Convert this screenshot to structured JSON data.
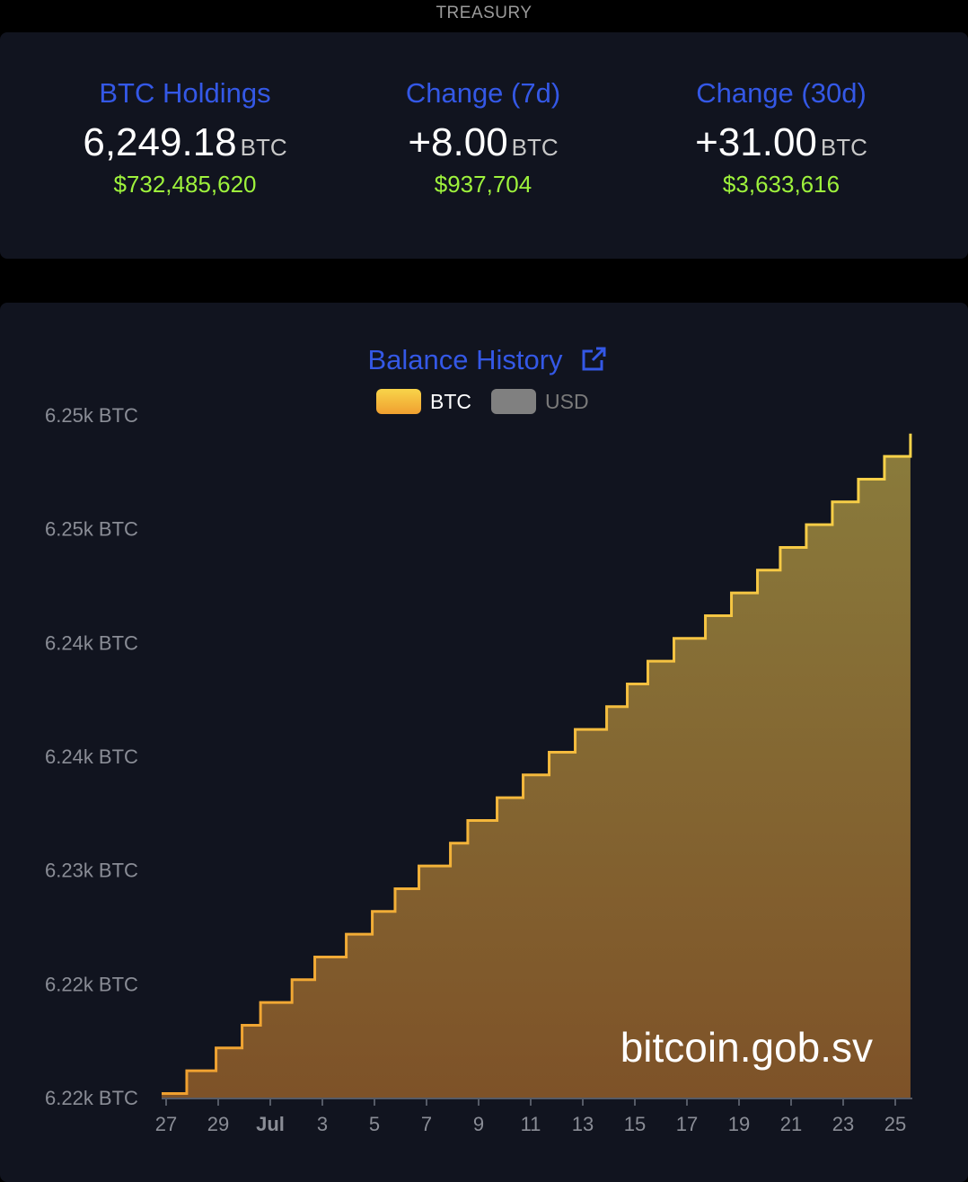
{
  "section_title": "TREASURY",
  "stats": [
    {
      "label": "BTC Holdings",
      "value": "6,249.18",
      "unit": "BTC",
      "usd": "$732,485,620"
    },
    {
      "label": "Change (7d)",
      "value": "+8.00",
      "unit": "BTC",
      "usd": "$937,704"
    },
    {
      "label": "Change (30d)",
      "value": "+31.00",
      "unit": "BTC",
      "usd": "$3,633,616"
    }
  ],
  "colors": {
    "accent": "#3458e6",
    "usd_green": "#9ef23c",
    "btc_line": "#f5b83a",
    "usd_legend": "#808080",
    "background": "#11141f"
  },
  "chart_data": {
    "type": "area",
    "step": true,
    "title": "Balance History",
    "title_icon": "external-link-icon",
    "legend": [
      {
        "name": "BTC",
        "color": "#f5b83a",
        "active": true
      },
      {
        "name": "USD",
        "color": "#808080",
        "active": false
      }
    ],
    "legend_placement": "top",
    "watermark": "bitcoin.gob.sv",
    "y_unit": "BTC",
    "ylim": [
      6220,
      6250
    ],
    "y_ticks": [
      {
        "value": 6250,
        "label": "6.25k BTC"
      },
      {
        "value": 6245,
        "label": "6.25k BTC"
      },
      {
        "value": 6240,
        "label": "6.24k BTC"
      },
      {
        "value": 6235,
        "label": "6.24k BTC"
      },
      {
        "value": 6230,
        "label": "6.23k BTC"
      },
      {
        "value": 6225,
        "label": "6.22k BTC"
      },
      {
        "value": 6220,
        "label": "6.22k BTC"
      }
    ],
    "x_ticks": [
      {
        "date": "06-27",
        "label": "27"
      },
      {
        "date": "06-29",
        "label": "29"
      },
      {
        "date": "07-01",
        "label": "Jul",
        "bold": true
      },
      {
        "date": "07-03",
        "label": "3"
      },
      {
        "date": "07-05",
        "label": "5"
      },
      {
        "date": "07-07",
        "label": "7"
      },
      {
        "date": "07-09",
        "label": "9"
      },
      {
        "date": "07-11",
        "label": "11"
      },
      {
        "date": "07-13",
        "label": "13"
      },
      {
        "date": "07-15",
        "label": "15"
      },
      {
        "date": "07-17",
        "label": "17"
      },
      {
        "date": "07-19",
        "label": "19"
      },
      {
        "date": "07-21",
        "label": "21"
      },
      {
        "date": "07-23",
        "label": "23"
      },
      {
        "date": "07-25",
        "label": "25"
      }
    ],
    "grid": false,
    "points": [
      [
        "06-26T20",
        6220.18
      ],
      [
        "06-27T19",
        6221.18
      ],
      [
        "06-28T22",
        6222.18
      ],
      [
        "06-29T22",
        6223.18
      ],
      [
        "06-30T15",
        6224.18
      ],
      [
        "07-01T20",
        6225.18
      ],
      [
        "07-02T17",
        6226.18
      ],
      [
        "07-03T22",
        6227.18
      ],
      [
        "07-04T22",
        6228.18
      ],
      [
        "07-05T19",
        6229.18
      ],
      [
        "07-06T17",
        6230.18
      ],
      [
        "07-07T22",
        6231.18
      ],
      [
        "07-08T14",
        6232.18
      ],
      [
        "07-09T17",
        6233.18
      ],
      [
        "07-10T17",
        6234.18
      ],
      [
        "07-11T17",
        6235.18
      ],
      [
        "07-12T17",
        6236.18
      ],
      [
        "07-13T22",
        6237.18
      ],
      [
        "07-14T17",
        6238.18
      ],
      [
        "07-15T12",
        6239.18
      ],
      [
        "07-16T12",
        6240.18
      ],
      [
        "07-17T17",
        6241.18
      ],
      [
        "07-18T17",
        6242.18
      ],
      [
        "07-19T17",
        6243.18
      ],
      [
        "07-20T14",
        6244.18
      ],
      [
        "07-21T14",
        6245.18
      ],
      [
        "07-22T14",
        6246.18
      ],
      [
        "07-23T14",
        6247.18
      ],
      [
        "07-24T14",
        6248.18
      ],
      [
        "07-25T14",
        6249.18
      ]
    ]
  }
}
